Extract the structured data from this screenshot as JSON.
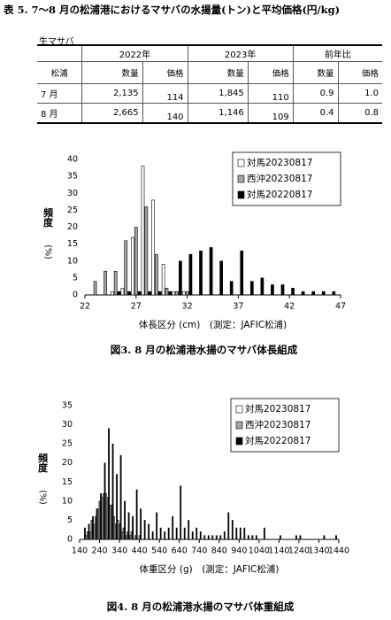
{
  "title": "表 5. 7～8 月の松浦港におけるマサバの水揚量(トン)と平均価格(円/kg)",
  "table": {
    "caption": "生マサバ",
    "header_years": [
      "2022年",
      "2023年",
      "前年比"
    ],
    "header_cols": [
      "松浦",
      "数量",
      "価格",
      "数量",
      "価格",
      "数量",
      "価格"
    ],
    "rows": [
      [
        "7 月",
        "2,135",
        "114",
        "1,845",
        "110",
        "0.9",
        "1.0"
      ],
      [
        "8 月",
        "2,665",
        "140",
        "1,146",
        "109",
        "0.4",
        "0.8"
      ]
    ]
  },
  "chart_data": [
    {
      "type": "bar",
      "caption": "図3. 8 月の松浦港水揚のマサバ体長組成",
      "x_label": "体長区分 (cm)　(測定：JAFIC松浦)",
      "y_label": "頻度",
      "y_unit": "(%)",
      "x": [
        23,
        24,
        25,
        26,
        27,
        28,
        29,
        30,
        31,
        32,
        33,
        34,
        35,
        36,
        37,
        38,
        39,
        40,
        41,
        42,
        43,
        44,
        45,
        46
      ],
      "series": [
        {
          "name": "対馬20230817",
          "color": "#ffffff",
          "values": [
            0,
            0,
            1,
            2,
            17,
            38,
            28,
            9,
            1,
            1,
            0,
            0,
            0,
            0,
            0,
            0,
            0,
            0,
            0,
            0,
            0,
            0,
            0,
            0
          ]
        },
        {
          "name": "西沖20230817",
          "color": "#a6a6a6",
          "values": [
            4,
            7,
            7,
            16,
            20,
            26,
            12,
            2,
            1,
            1,
            0,
            0,
            0,
            0,
            0,
            0,
            0,
            0,
            0,
            0,
            0,
            0,
            0,
            0
          ]
        },
        {
          "name": "対馬20220817",
          "color": "#000000",
          "values": [
            0,
            0,
            1,
            1,
            1,
            1,
            1,
            1,
            10,
            12,
            13,
            14,
            10,
            4,
            13,
            4,
            5,
            3,
            3,
            2,
            1,
            1,
            1,
            1
          ]
        }
      ],
      "xlim": [
        22,
        47
      ],
      "xticks": [
        22,
        27,
        32,
        37,
        42,
        47
      ],
      "ylim": [
        0,
        40
      ],
      "yticks": [
        0,
        5,
        10,
        15,
        20,
        25,
        30,
        35,
        40
      ],
      "grid": false,
      "legend": "upper right"
    },
    {
      "type": "bar",
      "caption": "図4. 8 月の松浦港水揚のマサバ体重組成",
      "x_label": "体重区分 (g)　(測定：JAFIC松浦)",
      "y_label": "頻度",
      "y_unit": "(%)",
      "x": [
        160,
        180,
        200,
        220,
        240,
        260,
        280,
        300,
        320,
        340,
        360,
        380,
        400,
        420,
        440,
        460,
        480,
        500,
        520,
        540,
        560,
        580,
        600,
        620,
        640,
        660,
        680,
        700,
        720,
        740,
        760,
        780,
        800,
        820,
        840,
        860,
        880,
        900,
        920,
        940,
        960,
        980,
        1000,
        1020,
        1040,
        1060,
        1080,
        1100,
        1120,
        1140,
        1160,
        1180,
        1200,
        1220,
        1240,
        1260,
        1280,
        1300,
        1320,
        1340,
        1360,
        1380,
        1400,
        1420
      ],
      "series": [
        {
          "name": "対馬20230817",
          "color": "#ffffff",
          "values": [
            0,
            1,
            2,
            4,
            8,
            11,
            12,
            9,
            6,
            5,
            2,
            1,
            1,
            0,
            0,
            0,
            0,
            0,
            0,
            0,
            0,
            0,
            0,
            0,
            0,
            0,
            0,
            0,
            0,
            0,
            0,
            0,
            0,
            0,
            0,
            0,
            0,
            0,
            0,
            0,
            0,
            0,
            0,
            0,
            0,
            0,
            0,
            0,
            0,
            0,
            0,
            0,
            0,
            0,
            0,
            0,
            0,
            0,
            0,
            0,
            0,
            0,
            0,
            0
          ]
        },
        {
          "name": "西沖20230817",
          "color": "#a6a6a6",
          "values": [
            0,
            2,
            5,
            6,
            10,
            12,
            11,
            9,
            4,
            4,
            3,
            2,
            2,
            1,
            1,
            0,
            0,
            0,
            0,
            0,
            0,
            0,
            0,
            0,
            0,
            0,
            0,
            0,
            0,
            0,
            0,
            0,
            0,
            0,
            0,
            0,
            0,
            0,
            0,
            0,
            0,
            0,
            0,
            0,
            0,
            0,
            0,
            0,
            0,
            0,
            0,
            0,
            0,
            0,
            0,
            0,
            0,
            0,
            0,
            0,
            0,
            0,
            0,
            0
          ]
        },
        {
          "name": "対馬20220817",
          "color": "#000000",
          "values": [
            3,
            4,
            6,
            8,
            12,
            20,
            29,
            25,
            17,
            22,
            10,
            7,
            6,
            13,
            8,
            5,
            4,
            2,
            7,
            3,
            2,
            3,
            6,
            3,
            14,
            3,
            5,
            2,
            3,
            2,
            1,
            1,
            1,
            1,
            1,
            2,
            7,
            5,
            3,
            3,
            3,
            1,
            1,
            1,
            0,
            3,
            0,
            0,
            0,
            1,
            0,
            0,
            0,
            1,
            1,
            0,
            0,
            0,
            0,
            0,
            1,
            0,
            0,
            1
          ]
        }
      ],
      "xlim": [
        140,
        1440
      ],
      "xticks": [
        140,
        240,
        340,
        440,
        540,
        640,
        740,
        840,
        940,
        1040,
        1140,
        1240,
        1340,
        1440
      ],
      "ylim": [
        0,
        35
      ],
      "yticks": [
        0,
        5,
        10,
        15,
        20,
        25,
        30,
        35
      ],
      "grid": false,
      "legend": "upper right"
    }
  ]
}
